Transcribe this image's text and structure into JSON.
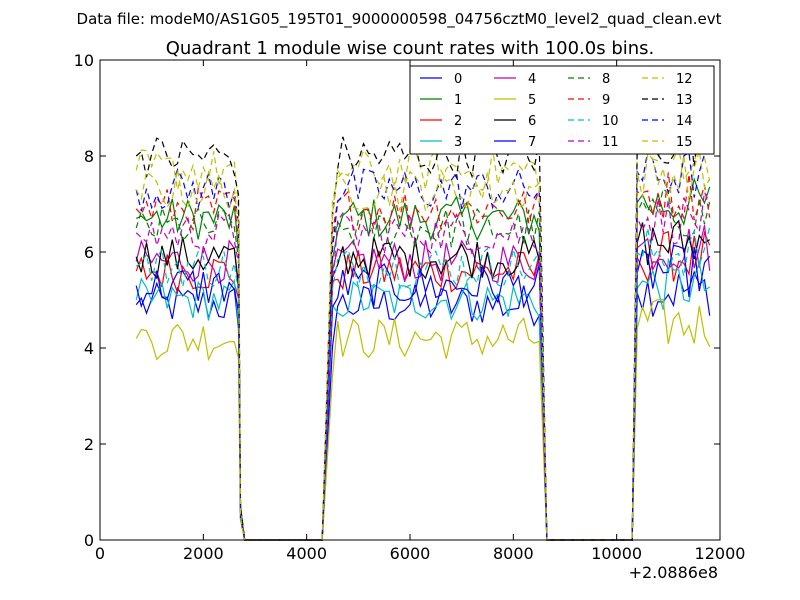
{
  "chart_data": {
    "type": "line",
    "suptitle": "Data file: modeM0/AS1G05_195T01_9000000598_04756cztM0_level2_quad_clean.evt",
    "title": "Quadrant 1 module wise count rates with 100.0s bins.",
    "xlabel": "",
    "ylabel": "",
    "x_offset_label": "+2.0886e8",
    "xlim": [
      0,
      12000
    ],
    "ylim": [
      0,
      10
    ],
    "x_ticks": [
      0,
      2000,
      4000,
      6000,
      8000,
      10000,
      12000
    ],
    "y_ticks": [
      0,
      2,
      4,
      6,
      8,
      10
    ],
    "x_tick_labels": [
      "0",
      "2000",
      "4000",
      "6000",
      "8000",
      "10000",
      "12000"
    ],
    "y_tick_labels": [
      "0",
      "2",
      "4",
      "6",
      "8",
      "10"
    ],
    "legend_position": "top-right",
    "legend_columns": 4,
    "bin_width_s": 100,
    "segments": [
      {
        "start": 700,
        "end": 2600,
        "drop_end": 2800
      },
      {
        "start": 4500,
        "end": 8500,
        "rise_start": 4300,
        "drop_end": 8650
      },
      {
        "start": 10500,
        "end": 11800,
        "rise_start": 10300
      }
    ],
    "series": [
      {
        "name": "0",
        "color": "#0000ff",
        "dash": "solid",
        "level": 4.9
      },
      {
        "name": "1",
        "color": "#008000",
        "dash": "solid",
        "level": 6.7
      },
      {
        "name": "2",
        "color": "#ff0000",
        "dash": "solid",
        "level": 5.6
      },
      {
        "name": "3",
        "color": "#00bfbf",
        "dash": "solid",
        "level": 5.0
      },
      {
        "name": "4",
        "color": "#bf00bf",
        "dash": "solid",
        "level": 5.8
      },
      {
        "name": "5",
        "color": "#bfbf00",
        "dash": "solid",
        "level": 4.2
      },
      {
        "name": "6",
        "color": "#000000",
        "dash": "solid",
        "level": 5.9
      },
      {
        "name": "7",
        "color": "#0000ff",
        "dash": "solid",
        "level": 5.3
      },
      {
        "name": "8",
        "color": "#008000",
        "dash": "dashed",
        "level": 6.5
      },
      {
        "name": "9",
        "color": "#ff0000",
        "dash": "dashed",
        "level": 6.9
      },
      {
        "name": "10",
        "color": "#00bfbf",
        "dash": "dashed",
        "level": 5.7
      },
      {
        "name": "11",
        "color": "#bf00bf",
        "dash": "dashed",
        "level": 6.4
      },
      {
        "name": "12",
        "color": "#bfbf00",
        "dash": "dashed",
        "level": 7.7
      },
      {
        "name": "13",
        "color": "#000000",
        "dash": "dashed",
        "level": 8.0
      },
      {
        "name": "14",
        "color": "#0000ff",
        "dash": "dashed",
        "level": 7.3
      },
      {
        "name": "15",
        "color": "#bfbf00",
        "dash": "dashed",
        "level": 7.3
      }
    ]
  }
}
